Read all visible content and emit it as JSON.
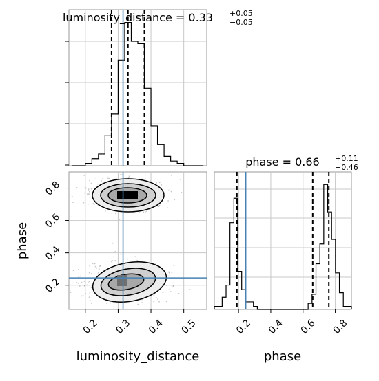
{
  "chart_data": {
    "type": "corner",
    "parameters": [
      "luminosity_distance",
      "phase"
    ],
    "truths": {
      "luminosity_distance": 0.315,
      "phase": 0.245
    },
    "panels": [
      {
        "kind": "histogram",
        "parameter": "luminosity_distance",
        "title_main": "luminosity_distance = 0.33",
        "title_sup": "+0.05",
        "title_sub": "−0.05",
        "xlim": [
          0.15,
          0.57
        ],
        "quantiles": [
          0.28,
          0.33,
          0.38
        ],
        "bins": [
          0.16,
          0.18,
          0.2,
          0.22,
          0.24,
          0.26,
          0.28,
          0.3,
          0.32,
          0.34,
          0.36,
          0.38,
          0.4,
          0.42,
          0.44,
          0.46,
          0.48,
          0.5,
          0.52,
          0.54,
          0.56
        ],
        "counts": [
          0,
          0,
          1,
          3,
          5,
          13,
          22,
          45,
          61,
          53,
          52,
          33,
          17,
          9,
          4,
          2,
          1,
          0,
          0,
          0
        ],
        "ymax": 65
      },
      {
        "kind": "histogram",
        "parameter": "phase",
        "title_main": "phase = 0.66",
        "title_sup": "+0.11",
        "title_sub": "−0.46",
        "xlim": [
          0.05,
          0.9
        ],
        "quantiles": [
          0.19,
          0.66,
          0.76
        ],
        "bins": [
          0.05,
          0.0742,
          0.0985,
          0.1227,
          0.1469,
          0.1712,
          0.1954,
          0.2196,
          0.2439,
          0.2681,
          0.2923,
          0.3166,
          0.3408,
          0.365,
          0.3893,
          0.4135,
          0.4377,
          0.462,
          0.4862,
          0.5104,
          0.5347,
          0.5589,
          0.5831,
          0.6074,
          0.6316,
          0.6558,
          0.6801,
          0.7043,
          0.7285,
          0.7528,
          0.777,
          0.8012,
          0.8255,
          0.8497,
          0.874,
          0.9
        ],
        "counts": [
          2,
          2,
          8,
          16,
          57,
          73,
          25,
          13,
          5,
          5,
          2,
          0,
          0,
          0,
          0,
          0,
          0,
          0,
          0,
          0,
          0,
          0,
          0,
          0,
          4,
          10,
          30,
          43,
          82,
          64,
          46,
          24,
          11,
          2,
          2
        ],
        "ymax": 88
      },
      {
        "kind": "2d",
        "x": "luminosity_distance",
        "y": "phase",
        "xlim": [
          0.15,
          0.57
        ],
        "ylim": [
          0.05,
          0.9
        ],
        "xlabel": "luminosity_distance",
        "ylabel": "phase",
        "xticks": [
          "0.2",
          "0.3",
          "0.4",
          "0.5"
        ],
        "yticks": [
          "0.2",
          "0.4",
          "0.6",
          "0.8"
        ],
        "modes": [
          {
            "x": 0.33,
            "y": 0.76
          },
          {
            "x": 0.32,
            "y": 0.22
          }
        ]
      }
    ],
    "phase_xticks": [
      "0.2",
      "0.4",
      "0.6",
      "0.8"
    ],
    "truth_color": "#4682b4",
    "line_color": "#000000",
    "grid": true
  }
}
